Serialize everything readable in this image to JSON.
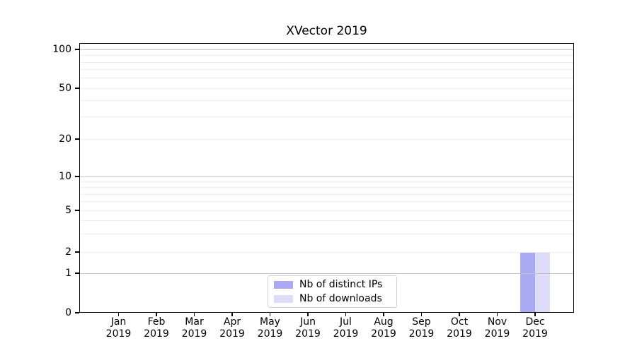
{
  "chart_data": {
    "type": "bar",
    "title": "XVector 2019",
    "x_axis": {
      "months": [
        "Jan",
        "Feb",
        "Mar",
        "Apr",
        "May",
        "Jun",
        "Jul",
        "Aug",
        "Sep",
        "Oct",
        "Nov",
        "Dec"
      ],
      "year": "2019"
    },
    "y_axis": {
      "scale": "log-like with 0 baseline",
      "range": [
        0,
        100
      ],
      "tick_labels": [
        0,
        1,
        2,
        5,
        10,
        20,
        50,
        100
      ],
      "major_gridlines": [
        1,
        10,
        100
      ],
      "minor_gridlines": [
        2,
        3,
        4,
        5,
        6,
        7,
        8,
        9,
        20,
        30,
        40,
        50,
        60,
        70,
        80,
        90
      ],
      "grid_on_top_of_bars": true
    },
    "series": [
      {
        "name": "Nb of distinct IPs",
        "color": "#a9a9f4",
        "values": [
          0,
          0,
          0,
          0,
          0,
          0,
          0,
          0,
          0,
          0,
          0,
          2
        ]
      },
      {
        "name": "Nb of downloads",
        "color": "#dcdcf8",
        "values": [
          0,
          0,
          0,
          0,
          0,
          0,
          0,
          0,
          0,
          0,
          0,
          2
        ]
      }
    ],
    "legend": {
      "position": "lower center",
      "items": [
        "Nb of distinct IPs",
        "Nb of downloads"
      ]
    }
  }
}
